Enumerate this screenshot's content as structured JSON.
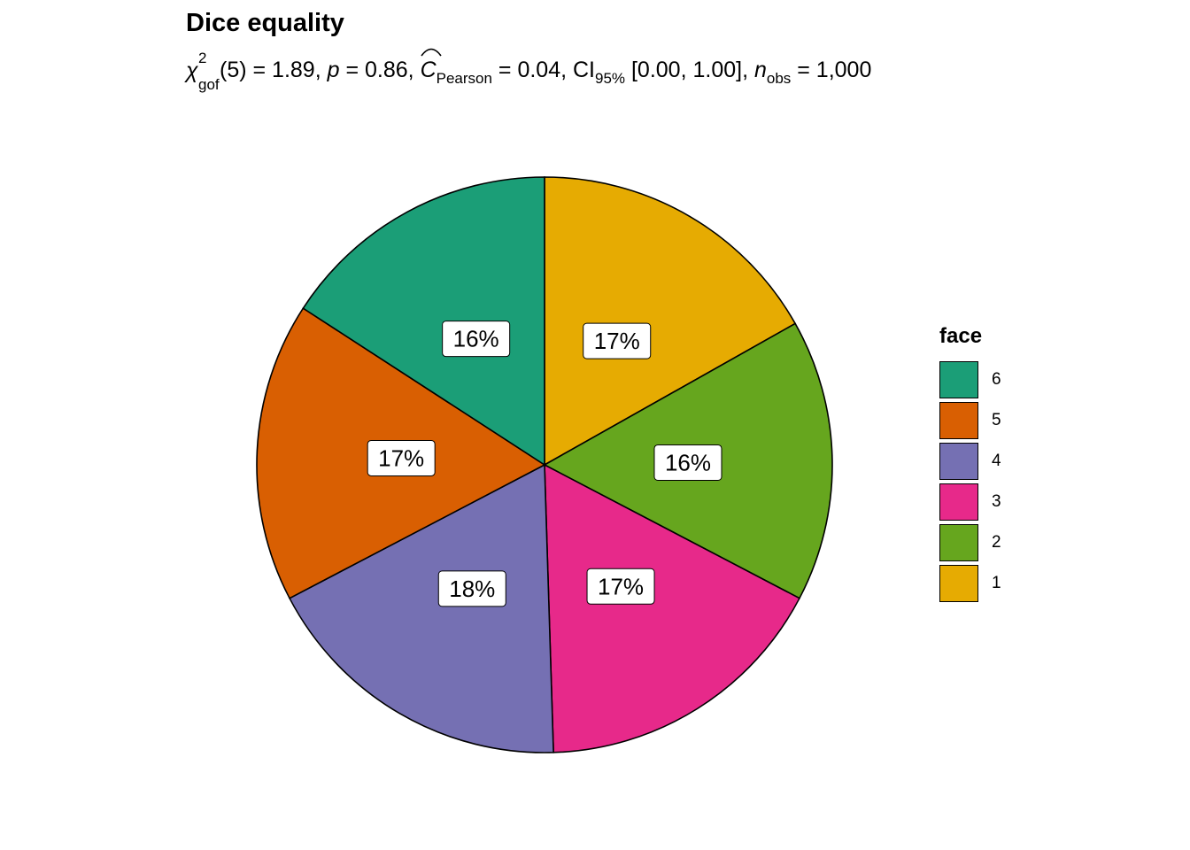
{
  "chart_data": {
    "type": "pie",
    "title": "Dice equality",
    "subtitle": {
      "chi_label": "χ",
      "chi_sup": "2",
      "chi_sub": "gof",
      "df_text": "(5) = 1.89, ",
      "p_label": "p",
      "p_text": " = 0.86, ",
      "c_label": "C",
      "c_sub": "Pearson",
      "c_text": " = 0.04, CI",
      "ci_sub": "95%",
      "ci_text": " [0.00, 1.00], ",
      "n_label": "n",
      "n_sub": "obs",
      "n_text": " = 1,000"
    },
    "legend_title": "face",
    "legend_position": "right",
    "slices": [
      {
        "label": "1",
        "value": 0.17,
        "text": "17%",
        "color": "#E6AB02"
      },
      {
        "label": "2",
        "value": 0.16,
        "text": "16%",
        "color": "#66A61E"
      },
      {
        "label": "3",
        "value": 0.17,
        "text": "17%",
        "color": "#E7298A"
      },
      {
        "label": "4",
        "value": 0.18,
        "text": "18%",
        "color": "#7570B3"
      },
      {
        "label": "5",
        "value": 0.17,
        "text": "17%",
        "color": "#D95F02"
      },
      {
        "label": "6",
        "value": 0.16,
        "text": "16%",
        "color": "#1B9E77"
      }
    ]
  }
}
